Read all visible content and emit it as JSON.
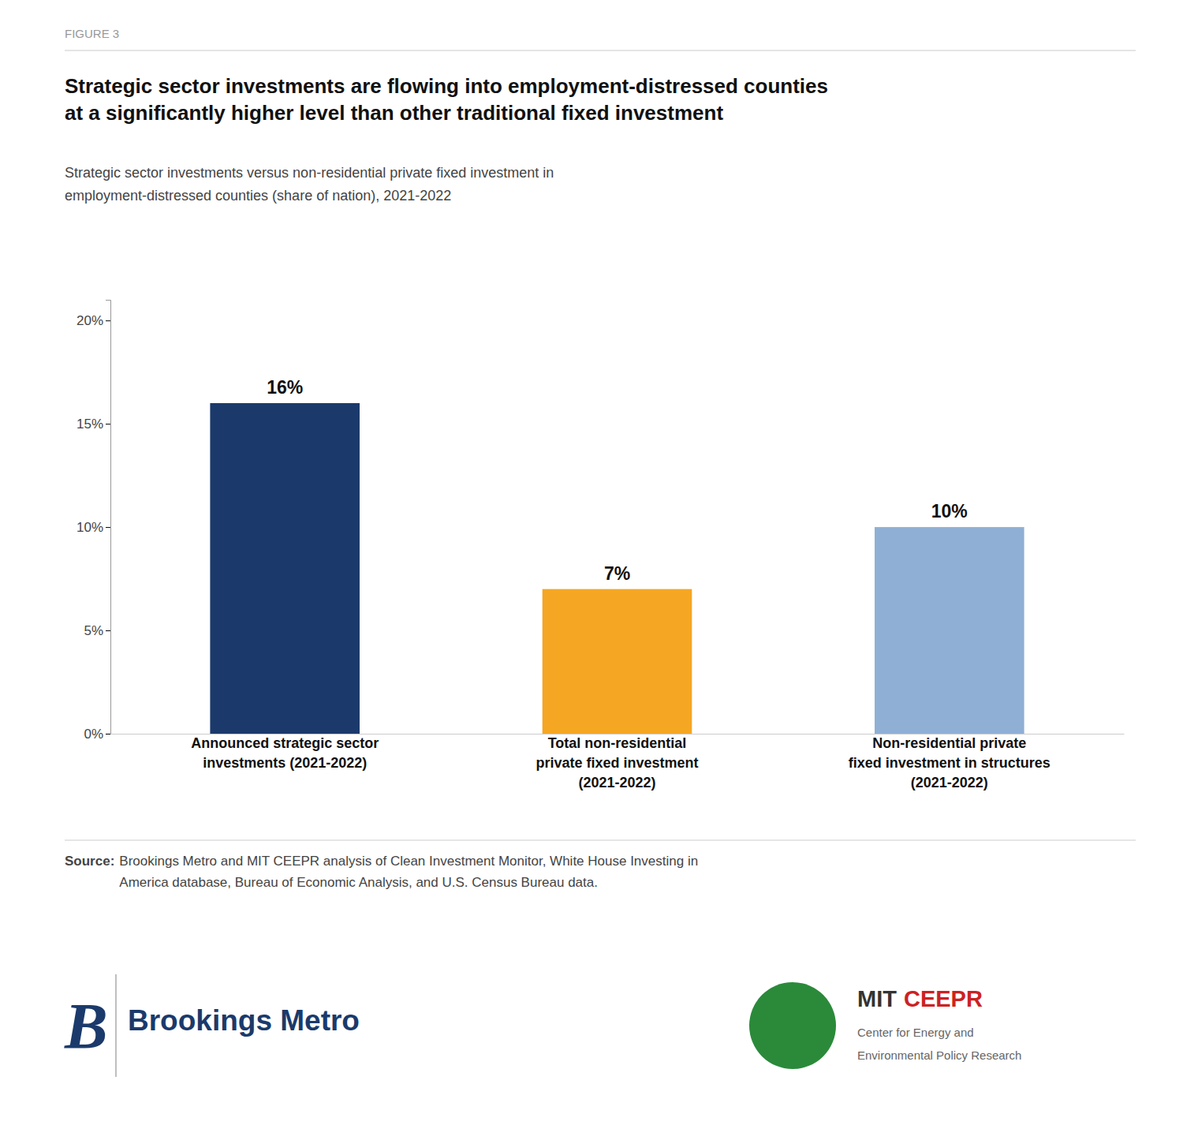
{
  "chart_data": {
    "type": "bar",
    "title": "Strategic sector investments are flowing into employment-distressed counties\nat a significantly higher level than other traditional fixed investment",
    "subtitle": "Strategic sector investments versus non-residential private fixed investment in\nemployment-distressed counties (share of nation), 2021-2022",
    "categories": [
      "Announced strategic sector\ninvestments (2021-2022)",
      "Total non-residential\nprivate fixed investment\n(2021-2022)",
      "Non-residential private\nfixed investment in structures\n(2021-2022)"
    ],
    "values": [
      16,
      7,
      10
    ],
    "value_labels": [
      "16%",
      "7%",
      "10%"
    ],
    "colors": [
      "#1b3a6b",
      "#f5a623",
      "#90afd4"
    ],
    "ylim": [
      0,
      21
    ],
    "yticks": [
      {
        "value": 0,
        "label": "0%"
      },
      {
        "value": 5,
        "label": "5%"
      },
      {
        "value": 10,
        "label": "10%"
      },
      {
        "value": 15,
        "label": "15%"
      },
      {
        "value": 20,
        "label": "20%"
      }
    ],
    "grid": false,
    "data_labels": true,
    "annotations": [
      "FIGURE 3",
      "Source:",
      "Brookings Metro and MIT CEEPR analysis of Clean Investment Monitor, White House Investing in\nAmerica database, Bureau of Economic Analysis, and U.S. Census Bureau data.",
      "B",
      "Brookings Metro",
      "MIT",
      "CEEPR",
      "Center for Energy and",
      "Environmental Policy Research"
    ]
  }
}
